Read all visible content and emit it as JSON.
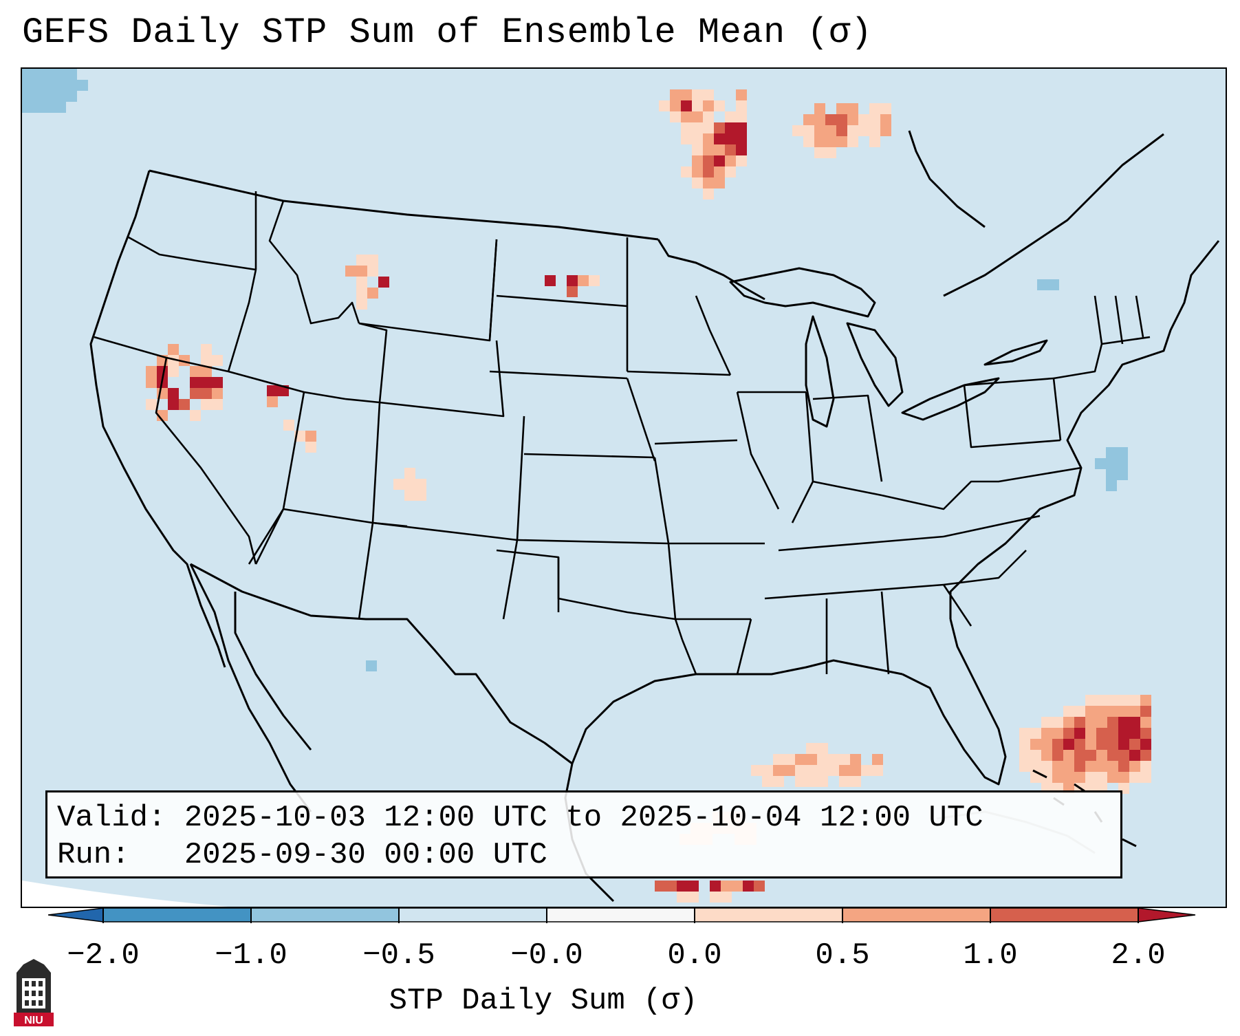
{
  "title": "GEFS Daily STP Sum of Ensemble Mean (σ)",
  "info": {
    "valid_label": "Valid:",
    "valid_value": "2025-10-03 12:00 UTC to 2025-10-04 12:00 UTC",
    "run_label": "Run:",
    "run_value": "2025-09-30 00:00 UTC"
  },
  "colorbar": {
    "label": "STP Daily Sum (σ)",
    "ticks": [
      "−2.0",
      "−1.0",
      "−0.5",
      "−0.0",
      "0.0",
      "0.5",
      "1.0",
      "2.0"
    ],
    "bins": [
      {
        "range": "< -2.0",
        "color": "#2166ac"
      },
      {
        "range": "-2.0 to -1.0",
        "color": "#4393c3"
      },
      {
        "range": "-1.0 to -0.5",
        "color": "#92c5de"
      },
      {
        "range": "-0.5 to -0.0",
        "color": "#d1e5f0"
      },
      {
        "range": "-0.0 to 0.0",
        "color": "#f7f7f7"
      },
      {
        "range": "0.0 to 0.5",
        "color": "#fddbc7"
      },
      {
        "range": "0.5 to 1.0",
        "color": "#f4a582"
      },
      {
        "range": "1.0 to 2.0",
        "color": "#d6604d"
      },
      {
        "range": "> 2.0",
        "color": "#b2182b"
      }
    ]
  },
  "map": {
    "projection": "Lambert Conformal",
    "region": "CONUS",
    "background_color": "#d1e5f0",
    "border_color": "#000000"
  },
  "logo": {
    "icon": "niu-building-logo-icon",
    "text": "NIU"
  }
}
